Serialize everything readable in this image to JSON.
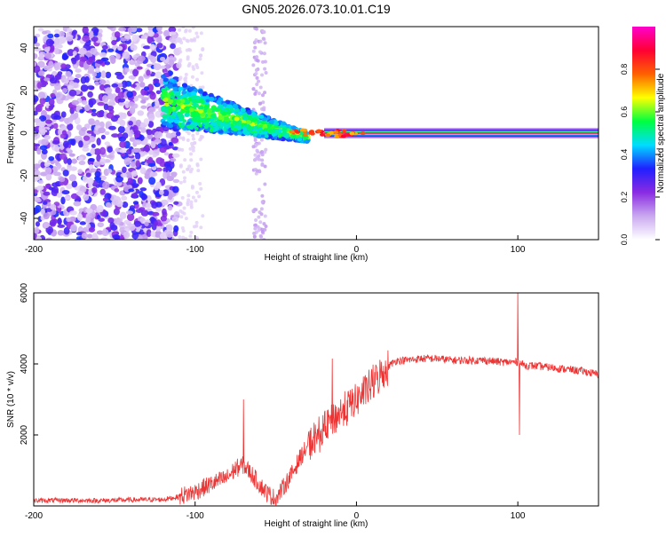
{
  "title": "GN05.2026.073.10.01.C19",
  "chart_data": [
    {
      "type": "heatmap",
      "xlabel": "Height of straight line (km)",
      "ylabel": "Frequency (Hz)",
      "xlim": [
        -200,
        150
      ],
      "ylim": [
        -50,
        50
      ],
      "x_ticks": [
        -200,
        -100,
        0,
        100
      ],
      "x_tick_labels": [
        "-200",
        "-100",
        "0",
        "100"
      ],
      "y_ticks": [
        -40,
        -20,
        0,
        20,
        40
      ],
      "y_tick_labels": [
        "-40",
        "-20",
        "0",
        "20",
        "40"
      ],
      "colorbar": {
        "label": "Normalized spectral amplitude",
        "range": [
          0,
          1
        ],
        "ticks": [
          0,
          0.2,
          0.4,
          0.6,
          0.8
        ],
        "tick_labels": [
          "0.0",
          "0.2",
          "0.4",
          "0.6",
          "0.8"
        ],
        "colors": [
          "#ffffff",
          "#c9a8f0",
          "#8a2be2",
          "#2020ff",
          "#00ddff",
          "#00ff40",
          "#ffff00",
          "#ff6000",
          "#ff0033",
          "#ff00cc"
        ]
      },
      "features": [
        {
          "name": "noise-region",
          "x_range": [
            -200,
            -110
          ],
          "freq_range": [
            -50,
            50
          ],
          "amplitude": 0.15
        },
        {
          "name": "scattered-column",
          "x_center": -60,
          "freq_range": [
            -50,
            50
          ],
          "amplitude": 0.08
        },
        {
          "name": "converging-band",
          "x_range": [
            -120,
            -30
          ],
          "freq_start": 15,
          "freq_end": -2,
          "amplitude": 0.35
        },
        {
          "name": "carrier-line",
          "x_range": [
            -20,
            150
          ],
          "freq": 0,
          "amplitude": 0.95
        }
      ]
    },
    {
      "type": "line",
      "xlabel": "Height of straight line (km)",
      "ylabel": "SNR (10 * v/v)",
      "xlim": [
        -200,
        150
      ],
      "ylim": [
        0,
        6000
      ],
      "x_ticks": [
        -200,
        -100,
        0,
        100
      ],
      "x_tick_labels": [
        "-200",
        "-100",
        "0",
        "100"
      ],
      "y_ticks": [
        2000,
        4000,
        6000
      ],
      "y_tick_labels": [
        "2000",
        "4000",
        "6000"
      ],
      "series": [
        {
          "name": "SNR",
          "color": "#ee3333",
          "x": [
            -200,
            -180,
            -160,
            -140,
            -120,
            -110,
            -100,
            -90,
            -80,
            -75,
            -70,
            -65,
            -60,
            -55,
            -50,
            -45,
            -40,
            -35,
            -30,
            -25,
            -20,
            -15,
            -10,
            -5,
            0,
            5,
            10,
            15,
            20,
            25,
            30,
            40,
            50,
            60,
            70,
            80,
            90,
            95,
            100,
            105,
            110,
            120,
            130,
            140,
            150
          ],
          "y": [
            150,
            160,
            150,
            170,
            180,
            260,
            400,
            620,
            800,
            1050,
            1150,
            900,
            600,
            350,
            200,
            550,
            900,
            1350,
            1700,
            1900,
            2150,
            2450,
            2600,
            2800,
            3000,
            3200,
            3450,
            3700,
            3950,
            4100,
            4100,
            4150,
            4150,
            4100,
            4100,
            4100,
            4050,
            4050,
            4050,
            3950,
            3950,
            3900,
            3850,
            3800,
            3700
          ],
          "spikes": [
            [
              -70,
              3000
            ],
            [
              -15,
              4150
            ],
            [
              100,
              6000
            ],
            [
              101,
              2000
            ]
          ]
        }
      ]
    }
  ]
}
